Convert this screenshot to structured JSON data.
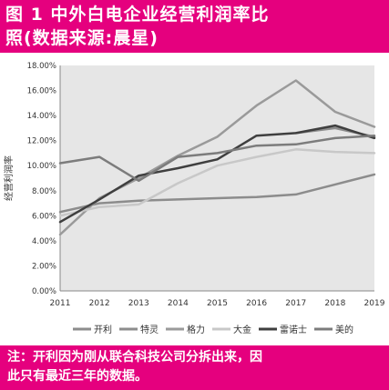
{
  "header": {
    "title_line1": "图 1    中外白电企业经营利润率比",
    "title_line2": "照(数据来源:晨星)"
  },
  "note": {
    "line1": "注：开利因为刚从联合科技公司分拆出来，因",
    "line2": "此只有最近三年的数据。"
  },
  "chart_data": {
    "type": "line",
    "ylabel": "经营利润率",
    "xlabel": "",
    "title": "",
    "x": [
      "2011",
      "2012",
      "2013",
      "2014",
      "2015",
      "2016",
      "2017",
      "2018",
      "2019"
    ],
    "y_ticks": [
      "0.00%",
      "2.00%",
      "4.00%",
      "6.00%",
      "8.00%",
      "10.00%",
      "12.00%",
      "14.00%",
      "16.00%",
      "18.00%"
    ],
    "ylim": [
      0,
      18
    ],
    "grid": false,
    "legend_position": "bottom",
    "series": [
      {
        "name": "开利",
        "color": "#8c8c8c",
        "width": 2.5,
        "values": [
          null,
          null,
          null,
          null,
          null,
          null,
          12.6,
          13.0,
          12.3
        ]
      },
      {
        "name": "特灵",
        "color": "#8c8c8c",
        "width": 2.5,
        "values": [
          6.3,
          7.0,
          7.2,
          7.3,
          7.4,
          7.5,
          7.7,
          8.5,
          9.3
        ]
      },
      {
        "name": "格力",
        "color": "#9a9a9a",
        "width": 2.5,
        "values": [
          4.5,
          7.4,
          9.0,
          10.8,
          12.3,
          14.8,
          16.8,
          14.3,
          13.1
        ]
      },
      {
        "name": "大金",
        "color": "#c8c8c8",
        "width": 2.5,
        "values": [
          6.0,
          6.7,
          6.9,
          8.6,
          10.0,
          10.7,
          11.3,
          11.1,
          11.0
        ]
      },
      {
        "name": "雷诺士",
        "color": "#3f3f3f",
        "width": 2.5,
        "values": [
          5.5,
          7.3,
          9.2,
          9.8,
          10.5,
          12.4,
          12.6,
          13.2,
          12.2
        ]
      },
      {
        "name": "美的",
        "color": "#7c7c7c",
        "width": 2.5,
        "values": [
          10.2,
          10.7,
          8.8,
          10.7,
          11.0,
          11.6,
          11.7,
          12.2,
          12.4
        ]
      }
    ]
  }
}
